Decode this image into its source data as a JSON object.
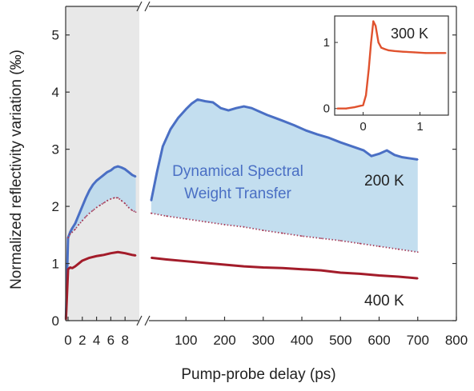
{
  "chart_data": {
    "type": "line",
    "ylabel": "Normalized reflectivity variation (‰)",
    "xlabel": "Pump-probe delay (ps)",
    "ylim": [
      0,
      5.5
    ],
    "y_ticks": [
      0,
      1,
      2,
      3,
      4,
      5
    ],
    "x_break": true,
    "x_short_range": [
      0,
      10
    ],
    "x_short_ticks": [
      0,
      2,
      4,
      6,
      8
    ],
    "x_long_range": [
      0,
      800
    ],
    "x_long_ticks": [
      100,
      200,
      300,
      400,
      500,
      600,
      700,
      800
    ],
    "series": [
      {
        "name": "200 K",
        "color": "#4a6fc4",
        "style": "solid",
        "short": {
          "x": [
            -0.3,
            0,
            0.3,
            0.6,
            1,
            1.5,
            2,
            2.5,
            3,
            3.5,
            4,
            4.5,
            5,
            5.5,
            6,
            6.5,
            7,
            7.5,
            8,
            8.5,
            9,
            9.5
          ],
          "y": [
            0.05,
            1.45,
            1.55,
            1.62,
            1.7,
            1.85,
            2.0,
            2.15,
            2.28,
            2.38,
            2.45,
            2.5,
            2.55,
            2.6,
            2.63,
            2.68,
            2.7,
            2.68,
            2.65,
            2.6,
            2.55,
            2.52
          ]
        },
        "long": {
          "x": [
            10,
            25,
            40,
            60,
            80,
            100,
            115,
            130,
            150,
            170,
            190,
            210,
            230,
            250,
            270,
            290,
            310,
            330,
            350,
            380,
            410,
            440,
            470,
            500,
            530,
            560,
            580,
            600,
            620,
            640,
            660,
            680,
            700
          ],
          "y": [
            2.1,
            2.6,
            3.05,
            3.35,
            3.55,
            3.7,
            3.8,
            3.87,
            3.84,
            3.82,
            3.72,
            3.68,
            3.72,
            3.75,
            3.72,
            3.66,
            3.6,
            3.55,
            3.5,
            3.42,
            3.33,
            3.26,
            3.2,
            3.12,
            3.05,
            2.98,
            2.88,
            2.92,
            2.98,
            2.9,
            2.86,
            2.84,
            2.82
          ]
        }
      },
      {
        "name": "",
        "color": "#a83e5a",
        "style": "dotted",
        "short": {
          "x": [
            0,
            0.3,
            0.6,
            1,
            1.5,
            2,
            2.5,
            3,
            3.5,
            4,
            4.5,
            5,
            5.5,
            6,
            6.5,
            7,
            7.5,
            8,
            8.5,
            9,
            9.5
          ],
          "y": [
            1.45,
            1.52,
            1.55,
            1.6,
            1.68,
            1.75,
            1.82,
            1.88,
            1.93,
            1.98,
            2.02,
            2.06,
            2.1,
            2.13,
            2.15,
            2.15,
            2.1,
            2.05,
            1.98,
            1.93,
            1.9
          ]
        },
        "long": {
          "x": [
            10,
            50,
            100,
            150,
            200,
            250,
            300,
            350,
            400,
            450,
            500,
            550,
            600,
            650,
            700
          ],
          "y": [
            1.88,
            1.83,
            1.78,
            1.73,
            1.68,
            1.64,
            1.58,
            1.53,
            1.48,
            1.44,
            1.4,
            1.35,
            1.3,
            1.25,
            1.2
          ]
        }
      },
      {
        "name": "400 K",
        "color": "#a31c2a",
        "style": "solid",
        "short": {
          "x": [
            -0.3,
            0,
            0.3,
            0.6,
            1,
            1.5,
            2,
            3,
            4,
            5,
            6,
            7,
            8,
            9,
            9.5
          ],
          "y": [
            0.02,
            0.9,
            0.93,
            0.92,
            0.95,
            1.0,
            1.05,
            1.1,
            1.13,
            1.15,
            1.18,
            1.2,
            1.18,
            1.15,
            1.14
          ]
        },
        "long": {
          "x": [
            10,
            50,
            100,
            150,
            200,
            250,
            300,
            350,
            400,
            450,
            500,
            550,
            600,
            650,
            700
          ],
          "y": [
            1.1,
            1.07,
            1.04,
            1.01,
            0.98,
            0.95,
            0.93,
            0.92,
            0.9,
            0.88,
            0.84,
            0.82,
            0.79,
            0.77,
            0.74
          ]
        }
      }
    ],
    "annotations": {
      "fill_label_line1": "Dynamical Spectral",
      "fill_label_line2": "Weight Transfer",
      "label_200k": "200 K",
      "label_400k": "400 K"
    },
    "shaded_region": {
      "x_range": [
        -1,
        10
      ],
      "color": "#e8e8e8"
    },
    "fill_color": "#b8d8ec",
    "inset": {
      "label": "300 K",
      "color": "#e0522e",
      "xlim": [
        -0.5,
        1.5
      ],
      "ylim": [
        -0.1,
        1.4
      ],
      "x_ticks": [
        0,
        1
      ],
      "y_ticks": [
        0,
        1
      ],
      "x": [
        -0.45,
        -0.3,
        -0.15,
        0,
        0.05,
        0.1,
        0.14,
        0.18,
        0.22,
        0.27,
        0.32,
        0.38,
        0.45,
        0.55,
        0.7,
        0.9,
        1.1,
        1.3,
        1.45
      ],
      "y": [
        0.0,
        0.0,
        0.02,
        0.05,
        0.2,
        0.6,
        1.0,
        1.32,
        1.25,
        1.0,
        0.92,
        0.9,
        0.88,
        0.87,
        0.86,
        0.85,
        0.84,
        0.84,
        0.84
      ]
    }
  }
}
